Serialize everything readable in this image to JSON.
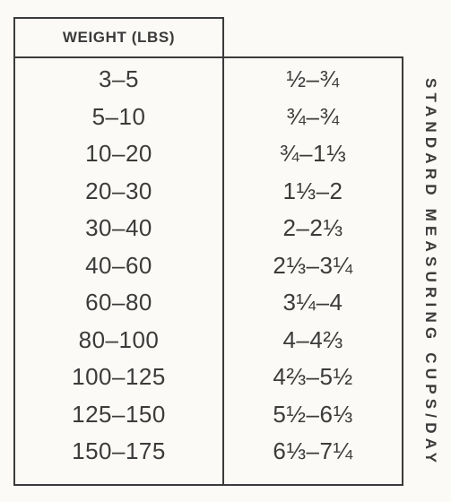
{
  "table": {
    "header": "WEIGHT (LBS)",
    "side_label": "STANDARD MEASURING CUPS/DAY",
    "rows": [
      {
        "weight": "3–5",
        "cups": "½–¾"
      },
      {
        "weight": "5–10",
        "cups": "¾–¾"
      },
      {
        "weight": "10–20",
        "cups": "¾–1⅓"
      },
      {
        "weight": "20–30",
        "cups": "1⅓–2"
      },
      {
        "weight": "30–40",
        "cups": "2–2⅓"
      },
      {
        "weight": "40–60",
        "cups": "2⅓–3¼"
      },
      {
        "weight": "60–80",
        "cups": "3¼–4"
      },
      {
        "weight": "80–100",
        "cups": "4–4⅔"
      },
      {
        "weight": "100–125",
        "cups": "4⅔–5½"
      },
      {
        "weight": "125–150",
        "cups": "5½–6⅓"
      },
      {
        "weight": "150–175",
        "cups": "6⅓–7¼"
      }
    ]
  }
}
